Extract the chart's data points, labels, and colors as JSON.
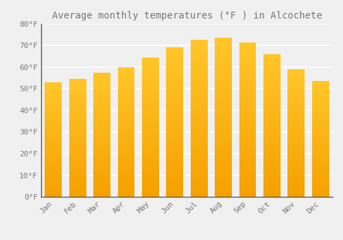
{
  "title": "Average monthly temperatures (°F ) in Alcochete",
  "months": [
    "Jan",
    "Feb",
    "Mar",
    "Apr",
    "May",
    "Jun",
    "Jul",
    "Aug",
    "Sep",
    "Oct",
    "Nov",
    "Dec"
  ],
  "values": [
    53,
    54.5,
    57.5,
    60,
    64.5,
    69,
    72.5,
    73.5,
    71.5,
    66,
    59,
    53.5
  ],
  "bar_color_top": "#FFC62A",
  "bar_color_bottom": "#F5A000",
  "ylim": [
    0,
    80
  ],
  "yticks": [
    0,
    10,
    20,
    30,
    40,
    50,
    60,
    70,
    80
  ],
  "ytick_labels": [
    "0°F",
    "10°F",
    "20°F",
    "30°F",
    "40°F",
    "50°F",
    "60°F",
    "70°F",
    "80°F"
  ],
  "bg_color": "#F0F0F0",
  "grid_color": "#FFFFFF",
  "title_fontsize": 10,
  "tick_fontsize": 8,
  "font_color": "#777777",
  "bar_width": 0.7
}
